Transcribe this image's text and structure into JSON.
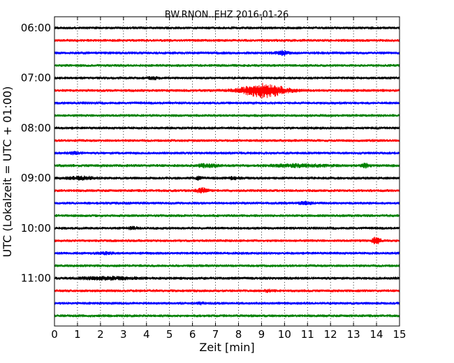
{
  "chart_data": {
    "type": "line",
    "title": "BW.RNON..EHZ 2016-01-26",
    "xlabel": "Zeit  [min]",
    "ylabel": "UTC (Lokalzeit = UTC + 01:00)",
    "xlim": [
      0,
      15
    ],
    "x_ticks": [
      "0",
      "1",
      "2",
      "3",
      "4",
      "5",
      "6",
      "7",
      "8",
      "9",
      "10",
      "11",
      "12",
      "13",
      "14",
      "15"
    ],
    "y_ticks": [
      "06:00",
      "07:00",
      "08:00",
      "09:00",
      "10:00",
      "11:00"
    ],
    "grid": "vertical dotted",
    "trace_minutes": 15,
    "traces_per_hour": 4,
    "color_cycle": [
      "#000000",
      "#ff0000",
      "#0000ff",
      "#008000"
    ],
    "traces": [
      {
        "start": "06:00",
        "noise": 0.5,
        "events": []
      },
      {
        "start": "06:15",
        "noise": 0.5,
        "events": []
      },
      {
        "start": "06:30",
        "noise": 0.55,
        "events": [
          {
            "minute": 9.9,
            "amplitude": 2.5,
            "duration": 0.35
          }
        ]
      },
      {
        "start": "06:45",
        "noise": 0.5,
        "events": []
      },
      {
        "start": "07:00",
        "noise": 0.5,
        "events": [
          {
            "minute": 4.3,
            "amplitude": 1.5,
            "duration": 0.3
          }
        ]
      },
      {
        "start": "07:15",
        "noise": 0.55,
        "events": [
          {
            "minute": 9.1,
            "amplitude": 9,
            "duration": 1.3
          }
        ]
      },
      {
        "start": "07:30",
        "noise": 0.5,
        "events": []
      },
      {
        "start": "07:45",
        "noise": 0.5,
        "events": []
      },
      {
        "start": "08:00",
        "noise": 0.5,
        "events": []
      },
      {
        "start": "08:15",
        "noise": 0.5,
        "events": []
      },
      {
        "start": "08:30",
        "noise": 0.5,
        "events": [
          {
            "minute": 0.9,
            "amplitude": 1.3,
            "duration": 0.4
          }
        ]
      },
      {
        "start": "08:45",
        "noise": 0.6,
        "events": [
          {
            "minute": 6.6,
            "amplitude": 2,
            "duration": 0.6
          },
          {
            "minute": 10.6,
            "amplitude": 1.6,
            "duration": 1.6
          },
          {
            "minute": 13.5,
            "amplitude": 2.8,
            "duration": 0.25
          }
        ]
      },
      {
        "start": "09:00",
        "noise": 0.55,
        "events": [
          {
            "minute": 1.2,
            "amplitude": 1.8,
            "duration": 0.8
          },
          {
            "minute": 6.3,
            "amplitude": 2,
            "duration": 0.2
          },
          {
            "minute": 7.8,
            "amplitude": 1.4,
            "duration": 0.3
          }
        ]
      },
      {
        "start": "09:15",
        "noise": 0.5,
        "events": [
          {
            "minute": 6.4,
            "amplitude": 3.2,
            "duration": 0.35
          }
        ]
      },
      {
        "start": "09:30",
        "noise": 0.5,
        "events": [
          {
            "minute": 10.9,
            "amplitude": 1.8,
            "duration": 0.4
          }
        ]
      },
      {
        "start": "09:45",
        "noise": 0.5,
        "events": []
      },
      {
        "start": "10:00",
        "noise": 0.5,
        "events": [
          {
            "minute": 3.4,
            "amplitude": 1.4,
            "duration": 0.3
          }
        ]
      },
      {
        "start": "10:15",
        "noise": 0.5,
        "events": [
          {
            "minute": 14.0,
            "amplitude": 5,
            "duration": 0.25
          }
        ]
      },
      {
        "start": "10:30",
        "noise": 0.5,
        "events": [
          {
            "minute": 2.2,
            "amplitude": 1.2,
            "duration": 0.5
          }
        ]
      },
      {
        "start": "10:45",
        "noise": 0.5,
        "events": []
      },
      {
        "start": "11:00",
        "noise": 0.6,
        "events": [
          {
            "minute": 2.3,
            "amplitude": 1.5,
            "duration": 1.6
          }
        ]
      },
      {
        "start": "11:15",
        "noise": 0.5,
        "events": [
          {
            "minute": 9.3,
            "amplitude": 1.2,
            "duration": 0.3
          }
        ]
      },
      {
        "start": "11:30",
        "noise": 0.5,
        "events": [
          {
            "minute": 6.3,
            "amplitude": 1.2,
            "duration": 0.3
          }
        ]
      },
      {
        "start": "11:45",
        "noise": 0.5,
        "events": []
      }
    ]
  }
}
